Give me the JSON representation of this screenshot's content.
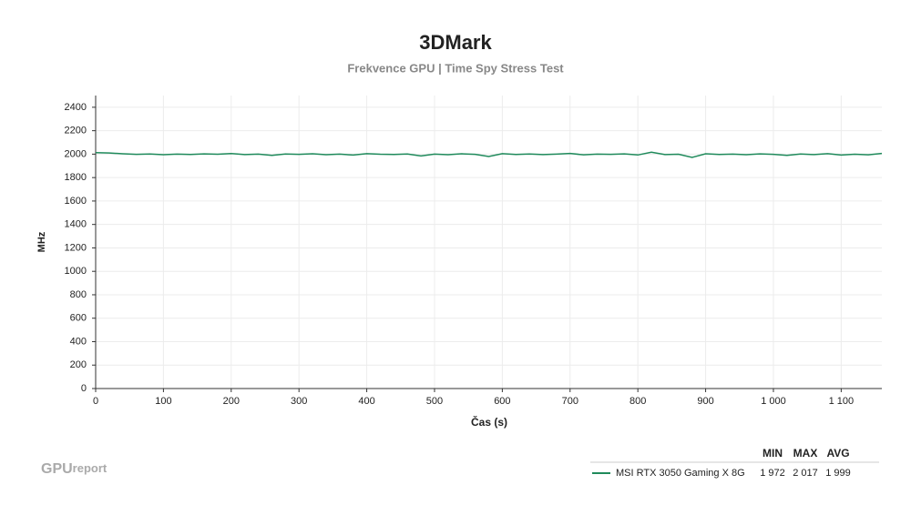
{
  "chart_data": {
    "type": "line",
    "title": "3DMark",
    "subtitle": "Frekvence GPU | Time Spy Stress Test",
    "x_label": "Čas (s)",
    "y_label": "MHz",
    "brand": [
      "GPU",
      "report"
    ],
    "x": [
      0,
      20,
      40,
      60,
      80,
      100,
      120,
      140,
      160,
      180,
      200,
      220,
      240,
      260,
      280,
      300,
      320,
      340,
      360,
      380,
      400,
      420,
      440,
      460,
      480,
      500,
      520,
      540,
      560,
      580,
      600,
      620,
      640,
      660,
      680,
      700,
      720,
      740,
      760,
      780,
      800,
      820,
      840,
      860,
      880,
      900,
      920,
      940,
      960,
      980,
      1000,
      1020,
      1040,
      1060,
      1080,
      1100,
      1120,
      1140,
      1160
    ],
    "series": [
      {
        "name": "MSI RTX 3050 Gaming X 8G",
        "color": "#1f8a5b",
        "values": [
          2013,
          2010,
          2003,
          1998,
          2001,
          1995,
          2000,
          1997,
          2002,
          1999,
          2005,
          1996,
          2000,
          1990,
          2001,
          1998,
          2003,
          1995,
          2000,
          1992,
          2004,
          1999,
          1997,
          2001,
          1985,
          2000,
          1995,
          2003,
          1998,
          1980,
          2004,
          1997,
          2001,
          1996,
          2000,
          2006,
          1994,
          2000,
          1998,
          2002,
          1993,
          2017,
          1996,
          1999,
          1972,
          2003,
          1997,
          2000,
          1995,
          2002,
          1998,
          1990,
          2001,
          1996,
          2004,
          1992,
          1999,
          1994,
          2006
        ]
      }
    ],
    "stats": {
      "headers": [
        "MIN",
        "MAX",
        "AVG"
      ],
      "values": [
        1972,
        2017,
        1999
      ],
      "value_labels": [
        "1 972",
        "2 017",
        "1 999"
      ]
    },
    "xlim": [
      0,
      1160
    ],
    "xticks": [
      0,
      100,
      200,
      300,
      400,
      500,
      600,
      700,
      800,
      900,
      {
        "value": 1000,
        "label": "1 000"
      },
      {
        "value": 1100,
        "label": "1 100"
      }
    ],
    "ylim": [
      0,
      2500
    ],
    "yticks": [
      0,
      200,
      400,
      600,
      800,
      1000,
      1200,
      1400,
      1600,
      1800,
      2000,
      2200,
      2400
    ],
    "grid": true
  }
}
